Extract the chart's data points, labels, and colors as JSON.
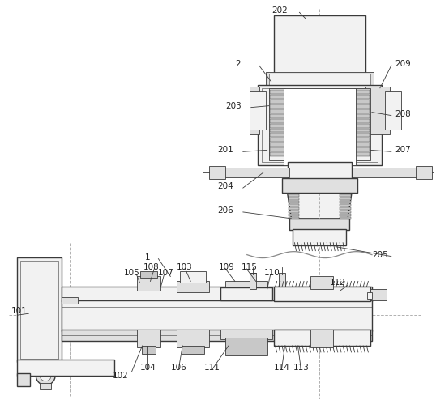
{
  "bg_color": "#ffffff",
  "lc": "#3a3a3a",
  "lc2": "#555555",
  "fc_light": "#f2f2f2",
  "fc_mid": "#e0e0e0",
  "fc_dark": "#c8c8c8",
  "fc_white": "#ffffff",
  "dashed_color": "#b0b0b0",
  "label_fs": 7.5,
  "fig_w": 5.38,
  "fig_h": 4.94,
  "dpi": 100
}
